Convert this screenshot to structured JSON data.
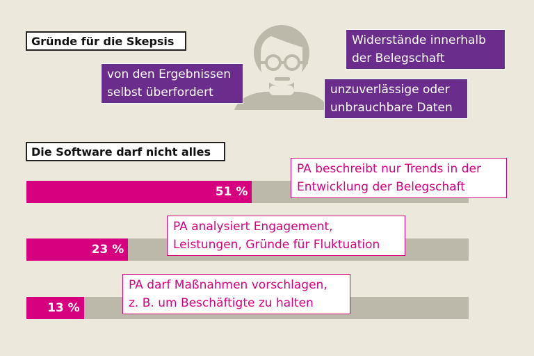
{
  "headers": {
    "reasons": "Gründe für die Skepsis",
    "software": "Die Software darf nicht alles"
  },
  "reasons": [
    {
      "line1": "von den Ergebnissen",
      "line2": "selbst überfordert"
    },
    {
      "line1": "Widerstände innerhalb",
      "line2": "der Belegschaft"
    },
    {
      "line1": "unzuverlässige oder",
      "line2": "unbrauchbare Daten"
    }
  ],
  "icon": "person-with-glasses-icon",
  "colors": {
    "background": "#ece9dc",
    "bar": "#d6007e",
    "track": "#bcb9aa",
    "reason_box": "#6b2d8b"
  },
  "chart_data": {
    "type": "bar",
    "orientation": "horizontal",
    "xlim": [
      0,
      100
    ],
    "categories": [
      "PA beschreibt nur Trends in der Entwicklung der Belegschaft",
      "PA analysiert Engagement, Leistungen, Gründe für Fluktuation",
      "PA darf Maßnahmen vorschlagen, z. B. um Beschäftigte zu halten"
    ],
    "values": [
      51,
      23,
      13
    ],
    "value_labels": [
      "51 %",
      "23 %",
      "13 %"
    ],
    "notes": [
      {
        "line1": "PA beschreibt nur Trends in der",
        "line2": "Entwicklung der Belegschaft"
      },
      {
        "line1": "PA analysiert Engagement,",
        "line2": "Leistungen, Gründe für Fluktuation"
      },
      {
        "line1": "PA darf Maßnahmen vorschlagen,",
        "line2": "z. B. um Beschäftigte zu halten"
      }
    ]
  }
}
